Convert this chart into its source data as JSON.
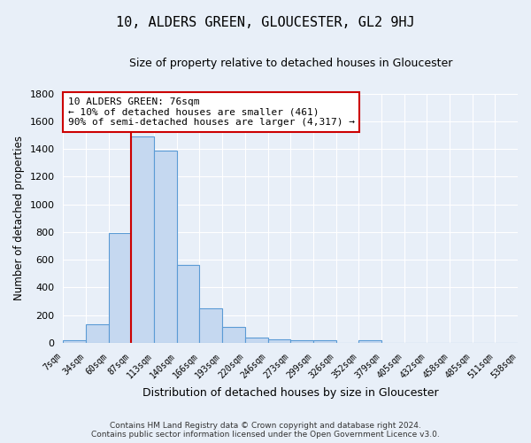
{
  "title": "10, ALDERS GREEN, GLOUCESTER, GL2 9HJ",
  "subtitle": "Size of property relative to detached houses in Gloucester",
  "xlabel": "Distribution of detached houses by size in Gloucester",
  "ylabel": "Number of detached properties",
  "bar_color": "#c5d8f0",
  "bar_edge_color": "#5b9bd5",
  "background_color": "#e8eff8",
  "grid_color": "#d0daea",
  "bins": [
    "7sqm",
    "34sqm",
    "60sqm",
    "87sqm",
    "113sqm",
    "140sqm",
    "166sqm",
    "193sqm",
    "220sqm",
    "246sqm",
    "273sqm",
    "299sqm",
    "326sqm",
    "352sqm",
    "379sqm",
    "405sqm",
    "432sqm",
    "458sqm",
    "485sqm",
    "511sqm",
    "538sqm"
  ],
  "values": [
    20,
    135,
    790,
    1490,
    1385,
    565,
    248,
    115,
    35,
    28,
    18,
    18,
    0,
    20,
    0,
    0,
    0,
    0,
    0,
    0
  ],
  "ylim": [
    0,
    1800
  ],
  "yticks": [
    0,
    200,
    400,
    600,
    800,
    1000,
    1200,
    1400,
    1600,
    1800
  ],
  "vline_x_index": 3,
  "vline_color": "#cc0000",
  "annotation_line1": "10 ALDERS GREEN: 76sqm",
  "annotation_line2": "← 10% of detached houses are smaller (461)",
  "annotation_line3": "90% of semi-detached houses are larger (4,317) →",
  "annotation_box_color": "#ffffff",
  "annotation_box_edge": "#cc0000",
  "footer_line1": "Contains HM Land Registry data © Crown copyright and database right 2024.",
  "footer_line2": "Contains public sector information licensed under the Open Government Licence v3.0.",
  "figsize": [
    6.0,
    5.0
  ],
  "dpi": 100
}
